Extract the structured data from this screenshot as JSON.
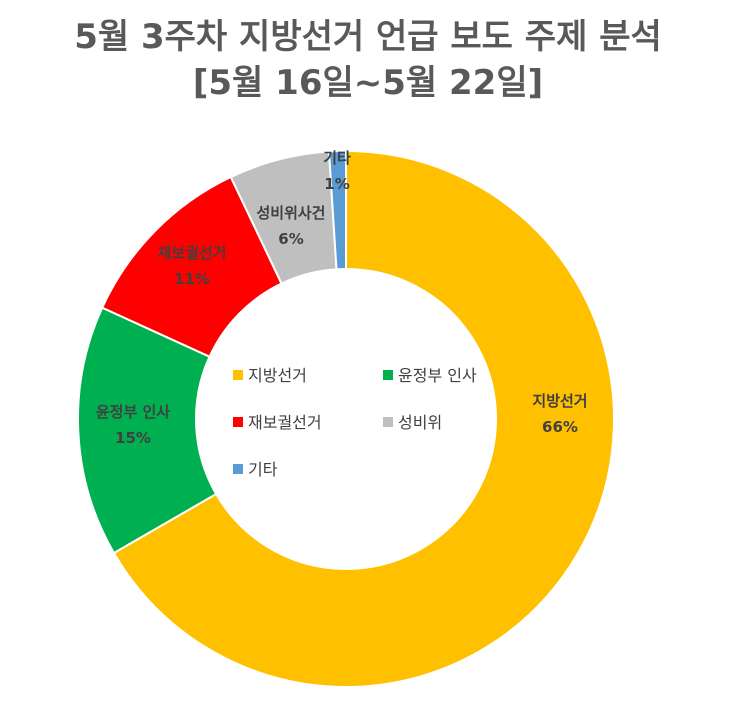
{
  "title": {
    "line1": "5월 3주차 지방선거 언급 보도 주제 분석",
    "line2": "[5월 16일~5월 22일]"
  },
  "chart_data": {
    "type": "pie",
    "donut": true,
    "categories": [
      "지방선거",
      "윤정부 인사",
      "재보궐선거",
      "성비위사건",
      "기타"
    ],
    "values": [
      66,
      15,
      11,
      6,
      1
    ],
    "unit": "%",
    "data_labels": [
      {
        "name": "지방선거",
        "value": "66%"
      },
      {
        "name": "윤정부 인사",
        "value": "15%"
      },
      {
        "name": "재보궐선거",
        "value": "11%"
      },
      {
        "name": "성비위사건",
        "value": "6%"
      },
      {
        "name": "기타",
        "value": "1%"
      }
    ],
    "colors": [
      "#FFC000",
      "#00B050",
      "#FF0000",
      "#BFBFBF",
      "#5B9BD5"
    ],
    "legend": {
      "placement": "center",
      "entries": [
        "지방선거",
        "윤정부 인사",
        "재보궐선거",
        "성비위",
        "기타"
      ]
    }
  }
}
